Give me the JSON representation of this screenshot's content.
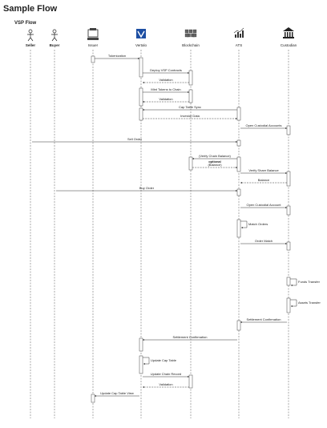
{
  "title": "Sample Flow",
  "subtitle": "VSP Flow",
  "participants": [
    "Seller",
    "Buyer",
    "Issuer",
    "Vertalo",
    "Blockchain",
    "ATS",
    "Custodian"
  ],
  "messages": [
    "Tokenization",
    "Deploy VSP Contracts",
    "Validation",
    "Mint Tokens to Chain",
    "Validation",
    "Cap Table Sync",
    "Investor Data",
    "Open Custodial Accounts",
    "Sell Order",
    "(Verify Chain Balance)",
    "optional",
    "(Balance)",
    "Verify Share Balance",
    "Balance",
    "Buy Order",
    "Open Custodial Account",
    "Match Orders",
    "Order Match",
    "Funds Transfer",
    "Assets Transfer",
    "Settlement Confirmation",
    "Settlement Confirmation",
    "Update Cap Table",
    "Update Chain Record",
    "Validation",
    "Update Cap Table View"
  ]
}
